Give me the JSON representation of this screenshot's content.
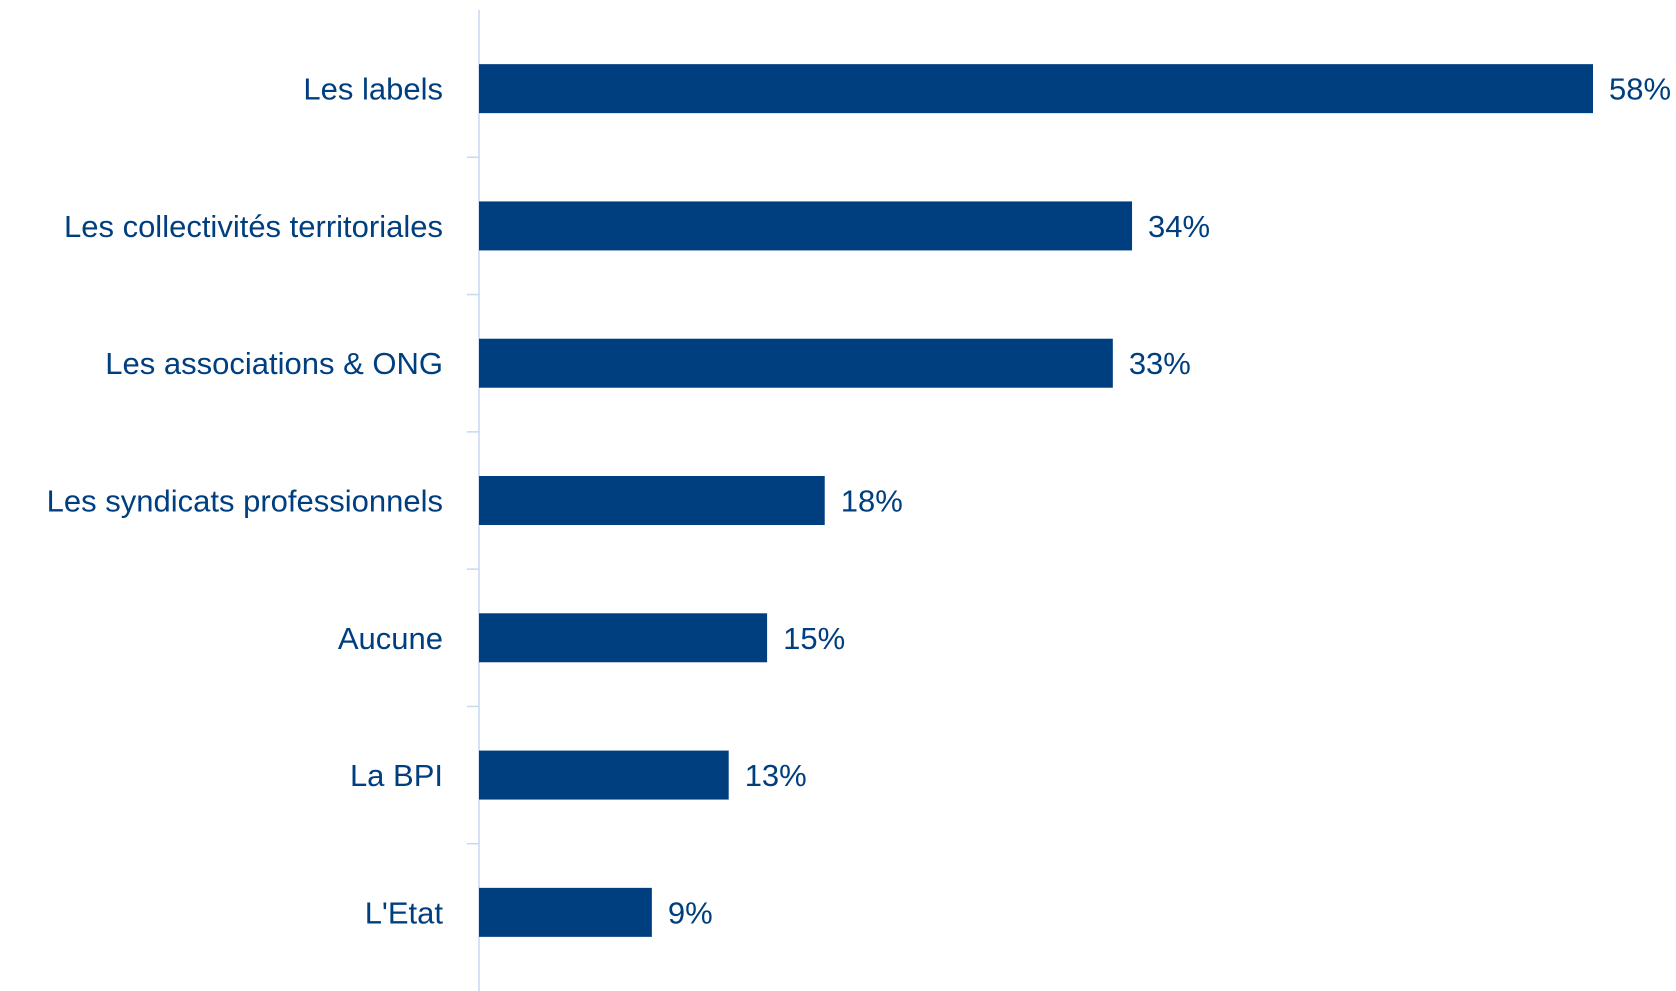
{
  "chart_data": {
    "type": "bar",
    "orientation": "horizontal",
    "title": "",
    "xlabel": "",
    "ylabel": "",
    "categories": [
      "Les labels",
      "Les collectivités territoriales",
      "Les associations & ONG",
      "Les syndicats professionnels",
      "Aucune",
      "La BPI",
      "L'Etat"
    ],
    "values": [
      58,
      34,
      33,
      18,
      15,
      13,
      9
    ],
    "value_labels": [
      "58%",
      "34%",
      "33%",
      "18%",
      "15%",
      "13%",
      "9%"
    ],
    "unit": "%",
    "xlim": [
      0,
      58
    ],
    "grid": false,
    "legend": "none",
    "colors": {
      "bar": "#003f7f",
      "text": "#003f7f",
      "axis": "#c5d9f1"
    }
  }
}
